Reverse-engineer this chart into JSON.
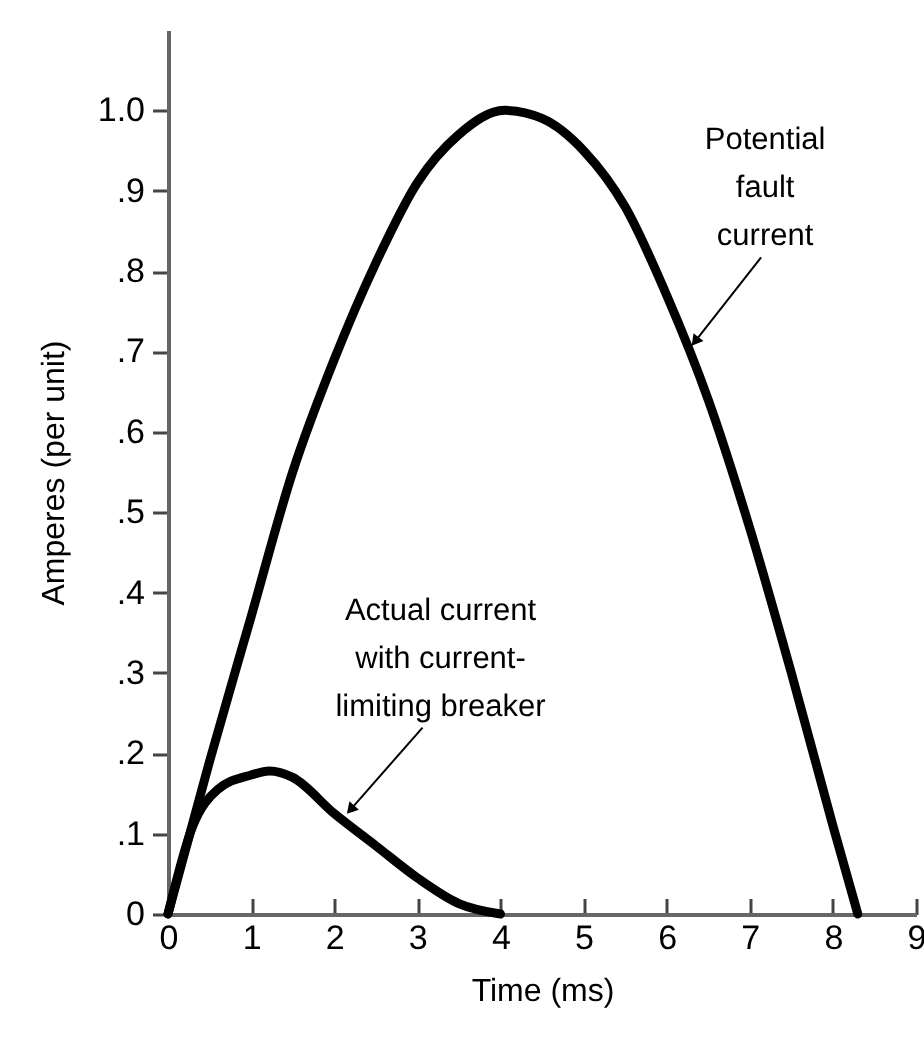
{
  "chart_data": {
    "type": "line",
    "xlabel": "Time (ms)",
    "ylabel": "Amperes (per unit)",
    "xlim": [
      0,
      9
    ],
    "ylim": [
      0,
      1.1
    ],
    "xticks": [
      0,
      1,
      2,
      3,
      4,
      5,
      6,
      7,
      8,
      9
    ],
    "yticks": [
      0,
      {
        "value": 0.1,
        "label": ".1"
      },
      {
        "value": 0.2,
        "label": ".2"
      },
      {
        "value": 0.3,
        "label": ".3"
      },
      {
        "value": 0.4,
        "label": ".4"
      },
      {
        "value": 0.5,
        "label": ".5"
      },
      {
        "value": 0.6,
        "label": ".6"
      },
      {
        "value": 0.7,
        "label": ".7"
      },
      {
        "value": 0.8,
        "label": ".8"
      },
      {
        "value": 0.9,
        "label": ".9"
      },
      {
        "value": 1.0,
        "label": "1.0"
      }
    ],
    "grid": false,
    "marker": "none",
    "line_style": "solid",
    "series": [
      {
        "color": "#000000",
        "x": [
          0,
          0.5,
          1,
          1.5,
          2,
          2.5,
          3,
          3.5,
          4.05,
          4.5,
          5,
          5.5,
          6,
          6.5,
          7,
          7.5,
          8,
          8.3
        ],
        "values": [
          0,
          0.19,
          0.37,
          0.55,
          0.69,
          0.81,
          0.91,
          0.97,
          1.0,
          0.99,
          0.95,
          0.88,
          0.77,
          0.64,
          0.48,
          0.3,
          0.11,
          0
        ]
      },
      {
        "color": "#000000",
        "x": [
          0,
          0.3,
          0.6,
          1,
          1.22,
          1.5,
          2,
          2.5,
          3,
          3.5,
          4
        ],
        "values": [
          0,
          0.11,
          0.155,
          0.173,
          0.178,
          0.17,
          0.125,
          0.085,
          0.045,
          0.013,
          0
        ]
      }
    ],
    "annotations": [
      {
        "text": "Potential\nfault\ncurrent",
        "x": 6.27,
        "y": 0.7
      },
      {
        "text": "Actual current\nwith current-\nlimiting breaker",
        "x": 2.1,
        "y": 0.115
      }
    ]
  }
}
